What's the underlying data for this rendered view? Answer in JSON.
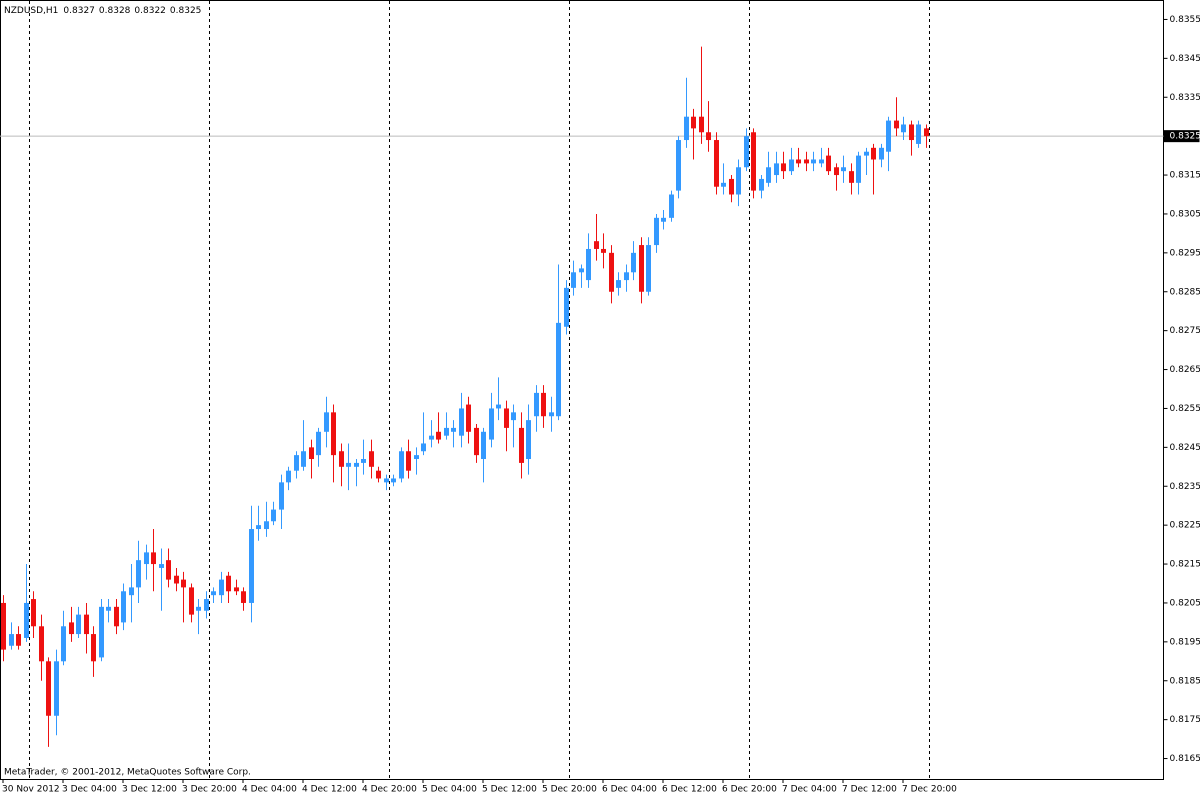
{
  "chart_data": {
    "type": "candlestick",
    "title": "NZDUSD,H1",
    "header_ohlc": [
      0.8327,
      0.8328,
      0.8322,
      0.8325
    ],
    "footer": "MetaTrader, © 2001-2012, MetaQuotes Software Corp.",
    "categories": [
      "30 Nov 2012",
      null,
      null,
      null,
      null,
      null,
      null,
      null,
      "3 Dec 04:00",
      null,
      null,
      null,
      null,
      null,
      null,
      null,
      "3 Dec 12:00",
      null,
      null,
      null,
      null,
      null,
      null,
      null,
      "3 Dec 20:00",
      null,
      null,
      null,
      null,
      null,
      null,
      null,
      "4 Dec 04:00",
      null,
      null,
      null,
      null,
      null,
      null,
      null,
      "4 Dec 12:00",
      null,
      null,
      null,
      null,
      null,
      null,
      null,
      "4 Dec 20:00",
      null,
      null,
      null,
      null,
      null,
      null,
      null,
      "5 Dec 04:00",
      null,
      null,
      null,
      null,
      null,
      null,
      null,
      "5 Dec 12:00",
      null,
      null,
      null,
      null,
      null,
      null,
      null,
      "5 Dec 20:00",
      null,
      null,
      null,
      null,
      null,
      null,
      null,
      "6 Dec 04:00",
      null,
      null,
      null,
      null,
      null,
      null,
      null,
      "6 Dec 12:00",
      null,
      null,
      null,
      null,
      null,
      null,
      null,
      "6 Dec 20:00",
      null,
      null,
      null,
      null,
      null,
      null,
      null,
      "7 Dec 04:00",
      null,
      null,
      null,
      null,
      null,
      null,
      null,
      "7 Dec 12:00",
      null,
      null,
      null,
      null,
      null,
      null,
      null,
      "7 Dec 20:00",
      null,
      null,
      null
    ],
    "open": [
      0.8205,
      0.8194,
      0.8197,
      0.8196,
      0.8206,
      0.8199,
      0.819,
      0.8176,
      0.819,
      0.82,
      0.8197,
      0.8202,
      0.8197,
      0.8191,
      0.8203,
      0.8204,
      0.82,
      0.8207,
      0.8209,
      0.8215,
      0.8218,
      0.8214,
      0.8216,
      0.8212,
      0.8211,
      0.8209,
      0.8203,
      0.8203,
      0.8207,
      0.8207,
      0.8212,
      0.8209,
      0.8208,
      0.8205,
      0.8224,
      0.8224,
      0.8226,
      0.8229,
      0.8236,
      0.8239,
      0.824,
      0.8245,
      0.8243,
      0.8249,
      0.8254,
      0.8244,
      0.824,
      0.824,
      0.8241,
      0.8244,
      0.8239,
      0.8236,
      0.8236,
      0.8237,
      0.8244,
      0.8242,
      0.8244,
      0.8247,
      0.8249,
      0.8248,
      0.8249,
      0.8248,
      0.8256,
      0.825,
      0.8242,
      0.8247,
      0.8255,
      0.8255,
      0.8252,
      0.825,
      0.8242,
      0.8253,
      0.8259,
      0.8253,
      0.8253,
      0.8276,
      0.8286,
      0.829,
      0.8288,
      0.8298,
      0.8296,
      0.8295,
      0.8286,
      0.8288,
      0.829,
      0.8297,
      0.8285,
      0.8297,
      0.8303,
      0.8304,
      0.8311,
      0.8324,
      0.833,
      0.833,
      0.8326,
      0.8324,
      0.8312,
      0.8314,
      0.831,
      0.8317,
      0.8326,
      0.8311,
      0.8313,
      0.8315,
      0.8318,
      0.8316,
      0.8319,
      0.8319,
      0.8318,
      0.8318,
      0.832,
      0.8317,
      0.8316,
      0.8316,
      0.8313,
      0.832,
      0.8322,
      0.8319,
      0.8321,
      0.8329,
      0.8326,
      0.8328,
      0.8323,
      0.8327
    ],
    "high": [
      0.8207,
      0.82,
      0.8199,
      0.8215,
      0.8208,
      0.8202,
      0.8191,
      0.8193,
      0.8203,
      0.8204,
      0.8204,
      0.8205,
      0.8199,
      0.8206,
      0.8206,
      0.8206,
      0.821,
      0.8215,
      0.8221,
      0.822,
      0.8224,
      0.8219,
      0.8219,
      0.8214,
      0.8213,
      0.821,
      0.8206,
      0.8208,
      0.8209,
      0.8213,
      0.8213,
      0.8211,
      0.8209,
      0.823,
      0.823,
      0.8231,
      0.8231,
      0.8238,
      0.824,
      0.8244,
      0.8252,
      0.8247,
      0.825,
      0.8258,
      0.8256,
      0.8246,
      0.8246,
      0.8242,
      0.8247,
      0.8247,
      0.824,
      0.8238,
      0.8238,
      0.8245,
      0.8247,
      0.8245,
      0.8254,
      0.8252,
      0.8254,
      0.8254,
      0.8252,
      0.8259,
      0.8258,
      0.8251,
      0.825,
      0.8259,
      0.8263,
      0.8257,
      0.8256,
      0.8254,
      0.8256,
      0.8261,
      0.8261,
      0.8258,
      0.8292,
      0.8288,
      0.8293,
      0.8292,
      0.83,
      0.8305,
      0.83,
      0.8297,
      0.829,
      0.8292,
      0.8298,
      0.8299,
      0.8299,
      0.8305,
      0.8306,
      0.8311,
      0.8325,
      0.834,
      0.8332,
      0.8348,
      0.8334,
      0.8326,
      0.8318,
      0.8315,
      0.8319,
      0.8327,
      0.8327,
      0.8315,
      0.8321,
      0.8321,
      0.8321,
      0.8322,
      0.8322,
      0.8321,
      0.8321,
      0.8322,
      0.8322,
      0.8318,
      0.832,
      0.8318,
      0.8321,
      0.8322,
      0.8323,
      0.8323,
      0.833,
      0.8335,
      0.833,
      0.8329,
      0.8329,
      0.8328
    ],
    "low": [
      0.819,
      0.8193,
      0.8193,
      0.8195,
      0.8196,
      0.8185,
      0.8168,
      0.8171,
      0.8189,
      0.8195,
      0.8196,
      0.8192,
      0.8186,
      0.819,
      0.82,
      0.8197,
      0.8198,
      0.82,
      0.8205,
      0.8211,
      0.8208,
      0.8203,
      0.8209,
      0.8208,
      0.82,
      0.82,
      0.8197,
      0.8201,
      0.8205,
      0.8205,
      0.8205,
      0.8207,
      0.8203,
      0.82,
      0.8221,
      0.8222,
      0.8225,
      0.8224,
      0.8234,
      0.8237,
      0.8239,
      0.8237,
      0.824,
      0.8245,
      0.8236,
      0.8235,
      0.8234,
      0.8235,
      0.8238,
      0.8237,
      0.8236,
      0.8234,
      0.8235,
      0.8236,
      0.8237,
      0.8238,
      0.8243,
      0.8245,
      0.8246,
      0.8247,
      0.8245,
      0.8245,
      0.8246,
      0.8241,
      0.8236,
      0.8245,
      0.8252,
      0.8244,
      0.8245,
      0.8237,
      0.8238,
      0.8249,
      0.825,
      0.8249,
      0.8252,
      0.8274,
      0.8284,
      0.8286,
      0.8286,
      0.8293,
      0.8291,
      0.8282,
      0.8284,
      0.8285,
      0.8288,
      0.8282,
      0.8284,
      0.8295,
      0.8301,
      0.8303,
      0.8309,
      0.8322,
      0.8319,
      0.8323,
      0.8321,
      0.831,
      0.831,
      0.8308,
      0.8307,
      0.8316,
      0.8309,
      0.8309,
      0.8312,
      0.8313,
      0.8314,
      0.8315,
      0.8317,
      0.8316,
      0.8316,
      0.8317,
      0.8315,
      0.8311,
      0.8313,
      0.831,
      0.831,
      0.8315,
      0.831,
      0.8317,
      0.8316,
      0.8325,
      0.8324,
      0.832,
      0.8322,
      0.8322
    ],
    "close": [
      0.8193,
      0.8197,
      0.8194,
      0.8205,
      0.8199,
      0.819,
      0.8176,
      0.819,
      0.8199,
      0.8197,
      0.8202,
      0.8197,
      0.819,
      0.8204,
      0.8204,
      0.8199,
      0.8208,
      0.8209,
      0.8216,
      0.8218,
      0.8215,
      0.8215,
      0.8211,
      0.821,
      0.8209,
      0.8202,
      0.8204,
      0.8206,
      0.8208,
      0.8211,
      0.8208,
      0.8208,
      0.8205,
      0.8224,
      0.8225,
      0.8226,
      0.8229,
      0.8236,
      0.8239,
      0.8243,
      0.8244,
      0.8242,
      0.8249,
      0.8254,
      0.8243,
      0.824,
      0.8241,
      0.8241,
      0.8242,
      0.824,
      0.8237,
      0.8237,
      0.8237,
      0.8244,
      0.8239,
      0.8243,
      0.8246,
      0.8248,
      0.8247,
      0.825,
      0.825,
      0.8255,
      0.8249,
      0.8243,
      0.8249,
      0.8255,
      0.8256,
      0.825,
      0.8254,
      0.8241,
      0.8252,
      0.8259,
      0.8253,
      0.8254,
      0.8277,
      0.8286,
      0.829,
      0.8291,
      0.8296,
      0.8296,
      0.8295,
      0.8285,
      0.8288,
      0.829,
      0.8295,
      0.8285,
      0.8297,
      0.8304,
      0.8304,
      0.831,
      0.8324,
      0.833,
      0.8327,
      0.8326,
      0.8324,
      0.8312,
      0.8313,
      0.831,
      0.8317,
      0.8325,
      0.8311,
      0.8314,
      0.8317,
      0.8318,
      0.8316,
      0.8319,
      0.8318,
      0.8318,
      0.8319,
      0.8319,
      0.8316,
      0.8315,
      0.8317,
      0.8313,
      0.832,
      0.8321,
      0.8319,
      0.8322,
      0.8329,
      0.8327,
      0.8328,
      0.8324,
      0.8328,
      0.8325
    ],
    "up_color": "#3399ff",
    "down_color": "#ee1111",
    "ylim": [
      0.816,
      0.836
    ],
    "yticks": [
      0.8165,
      0.8175,
      0.8185,
      0.8195,
      0.8205,
      0.8215,
      0.8225,
      0.8235,
      0.8245,
      0.8255,
      0.8265,
      0.8275,
      0.8285,
      0.8295,
      0.8305,
      0.8315,
      0.8325,
      0.8335,
      0.8345,
      0.8355
    ],
    "current_price": 0.8325,
    "period_separators": [
      4,
      28,
      52,
      76,
      100,
      124
    ],
    "grid": false
  }
}
